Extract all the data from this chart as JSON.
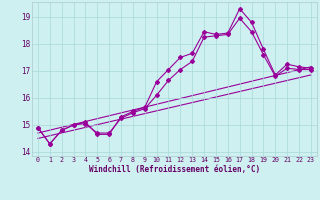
{
  "bg_color": "#cef0f0",
  "line_color": "#990099",
  "grid_color": "#a8d8d8",
  "xlabel": "Windchill (Refroidissement éolien,°C)",
  "xlim": [
    -0.5,
    23.5
  ],
  "ylim": [
    13.85,
    19.55
  ],
  "yticks": [
    14,
    15,
    16,
    17,
    18,
    19
  ],
  "xticks": [
    0,
    1,
    2,
    3,
    4,
    5,
    6,
    7,
    8,
    9,
    10,
    11,
    12,
    13,
    14,
    15,
    16,
    17,
    18,
    19,
    20,
    21,
    22,
    23
  ],
  "series1_x": [
    0,
    1,
    2,
    3,
    4,
    5,
    6,
    7,
    8,
    9,
    10,
    11,
    12,
    13,
    14,
    15,
    16,
    17,
    18,
    19,
    20,
    21,
    22,
    23
  ],
  "series1_y": [
    14.9,
    14.3,
    14.8,
    15.0,
    15.1,
    14.65,
    14.65,
    15.3,
    15.5,
    15.65,
    16.6,
    17.05,
    17.5,
    17.65,
    18.45,
    18.35,
    18.4,
    19.3,
    18.8,
    17.8,
    16.85,
    17.25,
    17.15,
    17.1
  ],
  "series2_y": [
    14.9,
    14.3,
    14.8,
    15.0,
    15.05,
    14.7,
    14.7,
    15.25,
    15.45,
    15.6,
    16.1,
    16.65,
    17.05,
    17.35,
    18.25,
    18.3,
    18.35,
    18.95,
    18.45,
    17.6,
    16.8,
    17.1,
    17.05,
    17.05
  ],
  "trend1_x": [
    0,
    23
  ],
  "trend1_y": [
    14.7,
    17.15
  ],
  "trend2_x": [
    0,
    23
  ],
  "trend2_y": [
    14.5,
    16.85
  ],
  "marker": "D",
  "marker_size": 2.0,
  "linewidth": 0.8
}
